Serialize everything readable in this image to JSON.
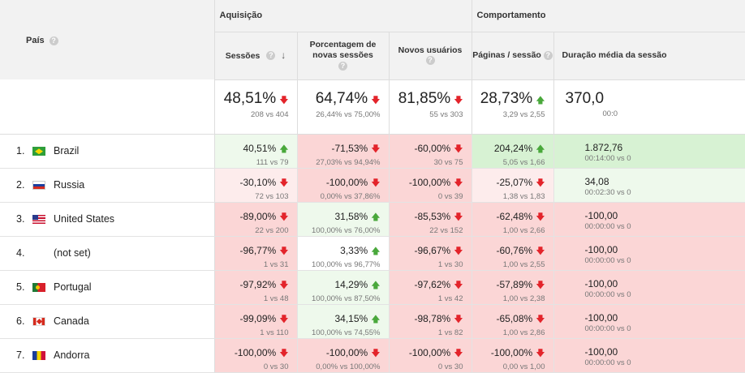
{
  "header": {
    "country_label": "País",
    "group_acquisition": "Aquisição",
    "group_behavior": "Comportamento",
    "columns": [
      {
        "label": "Sessões"
      },
      {
        "label": "Porcentagem de novas sessões"
      },
      {
        "label": "Novos usuários"
      },
      {
        "label": "Páginas / sessão"
      },
      {
        "label": "Duração média da sessão"
      }
    ]
  },
  "totals": [
    {
      "value": "48,51%",
      "trend": "down",
      "compare": "208 vs 404"
    },
    {
      "value": "64,74%",
      "trend": "down",
      "compare": "26,44% vs 75,00%"
    },
    {
      "value": "81,85%",
      "trend": "down",
      "compare": "55 vs 303"
    },
    {
      "value": "28,73%",
      "trend": "up",
      "compare": "3,29 vs 2,55"
    },
    {
      "value": "370,0",
      "trend": "",
      "compare": "00:0"
    }
  ],
  "rows": [
    {
      "index": "1.",
      "country": "Brazil",
      "flag": "br",
      "cells": [
        {
          "value": "40,51%",
          "trend": "up",
          "compare": "111 vs 79"
        },
        {
          "value": "-71,53%",
          "trend": "down",
          "compare": "27,03% vs 94,94%"
        },
        {
          "value": "-60,00%",
          "trend": "down",
          "compare": "30 vs 75"
        },
        {
          "value": "204,24%",
          "trend": "up",
          "compare": "5,05 vs 1,66"
        },
        {
          "value": "1.872,76",
          "trend": "",
          "compare": "00:14:00 vs 0"
        }
      ]
    },
    {
      "index": "2.",
      "country": "Russia",
      "flag": "ru",
      "cells": [
        {
          "value": "-30,10%",
          "trend": "down",
          "compare": "72 vs 103"
        },
        {
          "value": "-100,00%",
          "trend": "down",
          "compare": "0,00% vs 37,86%"
        },
        {
          "value": "-100,00%",
          "trend": "down",
          "compare": "0 vs 39"
        },
        {
          "value": "-25,07%",
          "trend": "down",
          "compare": "1,38 vs 1,83"
        },
        {
          "value": "34,08",
          "trend": "",
          "compare": "00:02:30 vs 0"
        }
      ]
    },
    {
      "index": "3.",
      "country": "United States",
      "flag": "us",
      "cells": [
        {
          "value": "-89,00%",
          "trend": "down",
          "compare": "22 vs 200"
        },
        {
          "value": "31,58%",
          "trend": "up",
          "compare": "100,00% vs 76,00%"
        },
        {
          "value": "-85,53%",
          "trend": "down",
          "compare": "22 vs 152"
        },
        {
          "value": "-62,48%",
          "trend": "down",
          "compare": "1,00 vs 2,66"
        },
        {
          "value": "-100,00",
          "trend": "",
          "compare": "00:00:00 vs 0"
        }
      ]
    },
    {
      "index": "4.",
      "country": "(not set)",
      "flag": "",
      "cells": [
        {
          "value": "-96,77%",
          "trend": "down",
          "compare": "1 vs 31"
        },
        {
          "value": "3,33%",
          "trend": "up",
          "compare": "100,00% vs 96,77%"
        },
        {
          "value": "-96,67%",
          "trend": "down",
          "compare": "1 vs 30"
        },
        {
          "value": "-60,76%",
          "trend": "down",
          "compare": "1,00 vs 2,55"
        },
        {
          "value": "-100,00",
          "trend": "",
          "compare": "00:00:00 vs 0"
        }
      ]
    },
    {
      "index": "5.",
      "country": "Portugal",
      "flag": "pt",
      "cells": [
        {
          "value": "-97,92%",
          "trend": "down",
          "compare": "1 vs 48"
        },
        {
          "value": "14,29%",
          "trend": "up",
          "compare": "100,00% vs 87,50%"
        },
        {
          "value": "-97,62%",
          "trend": "down",
          "compare": "1 vs 42"
        },
        {
          "value": "-57,89%",
          "trend": "down",
          "compare": "1,00 vs 2,38"
        },
        {
          "value": "-100,00",
          "trend": "",
          "compare": "00:00:00 vs 0"
        }
      ]
    },
    {
      "index": "6.",
      "country": "Canada",
      "flag": "ca",
      "cells": [
        {
          "value": "-99,09%",
          "trend": "down",
          "compare": "1 vs 110"
        },
        {
          "value": "34,15%",
          "trend": "up",
          "compare": "100,00% vs 74,55%"
        },
        {
          "value": "-98,78%",
          "trend": "down",
          "compare": "1 vs 82"
        },
        {
          "value": "-65,08%",
          "trend": "down",
          "compare": "1,00 vs 2,86"
        },
        {
          "value": "-100,00",
          "trend": "",
          "compare": "00:00:00 vs 0"
        }
      ]
    },
    {
      "index": "7.",
      "country": "Andorra",
      "flag": "ad",
      "cells": [
        {
          "value": "-100,00%",
          "trend": "down",
          "compare": "0 vs 30"
        },
        {
          "value": "-100,00%",
          "trend": "down",
          "compare": "0,00% vs 100,00%"
        },
        {
          "value": "-100,00%",
          "trend": "down",
          "compare": "0 vs 30"
        },
        {
          "value": "-100,00%",
          "trend": "down",
          "compare": "0,00 vs 1,00"
        },
        {
          "value": "-100,00",
          "trend": "",
          "compare": "00:00:00 vs 0"
        }
      ]
    }
  ],
  "colors": {
    "negative": "#fbd6d6",
    "positive": "#d7f2d3",
    "arrow_down": "#e3242b",
    "arrow_up": "#49a83b"
  }
}
